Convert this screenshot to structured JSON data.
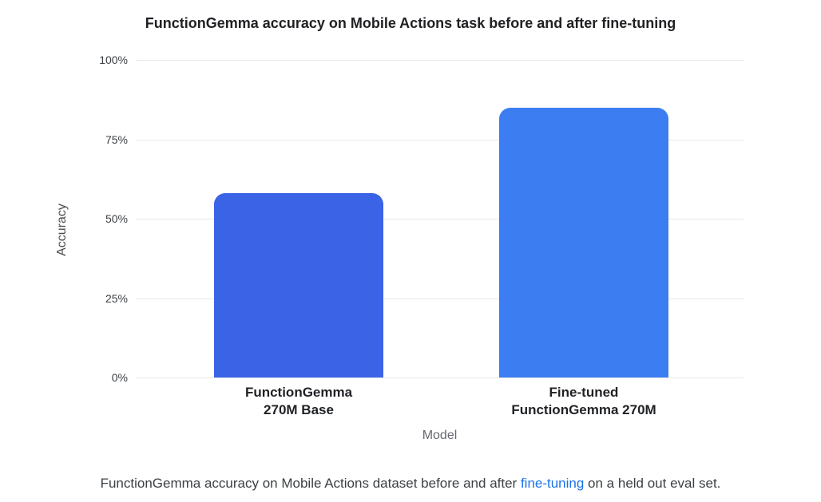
{
  "title": "FunctionGemma accuracy on Mobile Actions task before and after fine-tuning",
  "chart_data": {
    "type": "bar",
    "title": "FunctionGemma accuracy on Mobile Actions task before and after fine-tuning",
    "categories": [
      "FunctionGemma\n270M Base",
      "Fine-tuned\nFunctionGemma 270M"
    ],
    "values": [
      58,
      85
    ],
    "bar_colors": [
      "#3b63e6",
      "#3c7df2"
    ],
    "xlabel": "Model",
    "ylabel": "Accuracy",
    "ylim": [
      0,
      100
    ],
    "yticks": [
      0,
      25,
      50,
      75,
      100
    ],
    "ytick_labels": [
      "0%",
      "25%",
      "50%",
      "75%",
      "100%"
    ],
    "grid": true,
    "legend": false
  },
  "caption": {
    "pre": "FunctionGemma accuracy on Mobile Actions dataset before and after ",
    "link_text": "fine-tuning",
    "post": " on a held out eval set."
  },
  "colors": {
    "bar_base": "#3b63e6",
    "bar_finetuned": "#3c7df2",
    "link": "#1a73e8",
    "gridline": "#e8e8e8",
    "title_text": "#202124",
    "tick_text": "#3c4043",
    "axis_title_text": "#5f6368",
    "caption_text": "#3c4043"
  }
}
